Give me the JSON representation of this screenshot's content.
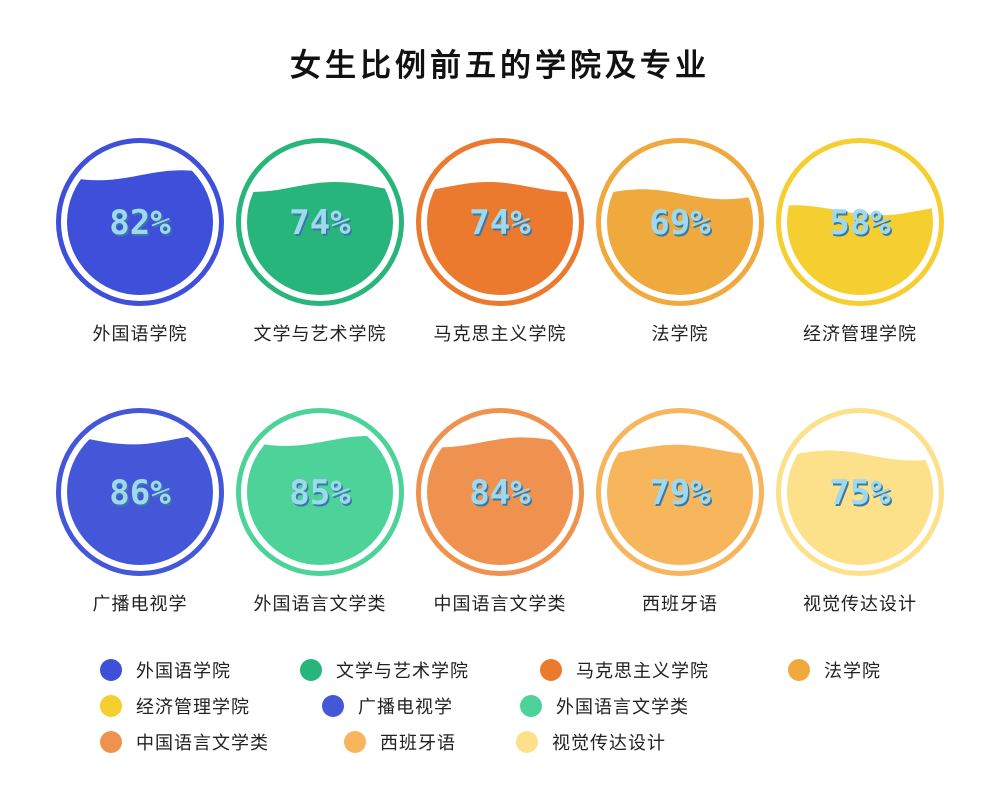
{
  "title": "女生比例前五的学院及专业",
  "chart_data": {
    "type": "gauge",
    "title": "女生比例前五的学院及专业",
    "unit": "%",
    "items": [
      {
        "label": "外国语学院",
        "value": 82,
        "display": "82%",
        "color": "#3e4fd9"
      },
      {
        "label": "文学与艺术学院",
        "value": 74,
        "display": "74%",
        "color": "#27b57b"
      },
      {
        "label": "马克思主义学院",
        "value": 74,
        "display": "74%",
        "color": "#ec7a2e"
      },
      {
        "label": "法学院",
        "value": 69,
        "display": "69%",
        "color": "#efa93d"
      },
      {
        "label": "经济管理学院",
        "value": 58,
        "display": "58%",
        "color": "#f5cf2f"
      },
      {
        "label": "广播电视学",
        "value": 86,
        "display": "86%",
        "color": "#4557d9"
      },
      {
        "label": "外国语言文学类",
        "value": 85,
        "display": "85%",
        "color": "#4dd39a"
      },
      {
        "label": "中国语言文学类",
        "value": 84,
        "display": "84%",
        "color": "#f0924f"
      },
      {
        "label": "西班牙语",
        "value": 79,
        "display": "79%",
        "color": "#f7b55c"
      },
      {
        "label": "视觉传达设计",
        "value": 75,
        "display": "75%",
        "color": "#fce08a"
      }
    ]
  },
  "legend": [
    {
      "label": "外国语学院",
      "color": "#3e4fd9"
    },
    {
      "label": "文学与艺术学院",
      "color": "#27b57b"
    },
    {
      "label": "马克思主义学院",
      "color": "#ec7a2e"
    },
    {
      "label": "法学院",
      "color": "#efa93d"
    },
    {
      "label": "经济管理学院",
      "color": "#f5cf2f"
    },
    {
      "label": "广播电视学",
      "color": "#4557d9"
    },
    {
      "label": "外国语言文学类",
      "color": "#4dd39a"
    },
    {
      "label": "中国语言文学类",
      "color": "#f0924f"
    },
    {
      "label": "西班牙语",
      "color": "#f7b55c"
    },
    {
      "label": "视觉传达设计",
      "color": "#fce08a"
    }
  ],
  "colors": {
    "percent_text": "#9fd9ee",
    "percent_text_shadow": "#3a78a8",
    "ring_inner": "#ffffff"
  }
}
